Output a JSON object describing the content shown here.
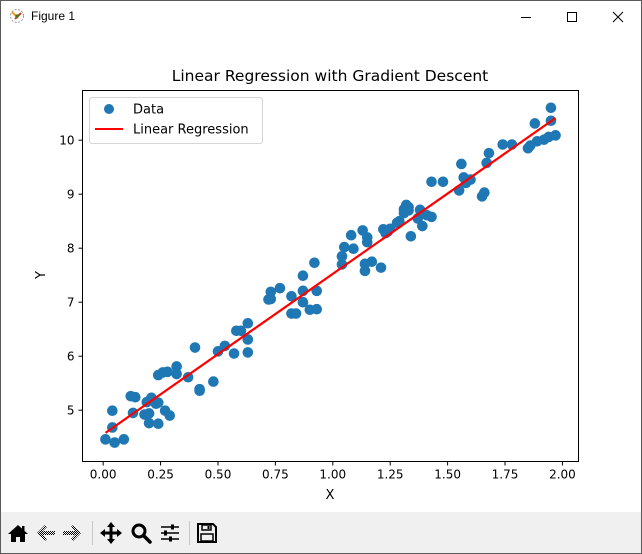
{
  "window": {
    "title": "Figure 1",
    "controls": [
      "minimize",
      "maximize",
      "close"
    ]
  },
  "toolbar": {
    "buttons": [
      {
        "name": "home",
        "icon": "home-icon"
      },
      {
        "name": "back",
        "icon": "arrow-left-icon"
      },
      {
        "name": "forward",
        "icon": "arrow-right-icon"
      },
      {
        "name": "pan",
        "icon": "move-icon"
      },
      {
        "name": "zoom",
        "icon": "magnifier-icon"
      },
      {
        "name": "configure-subplots",
        "icon": "sliders-icon"
      },
      {
        "name": "save",
        "icon": "floppy-disk-icon"
      }
    ]
  },
  "colors": {
    "scatter": "#1f77b4",
    "line": "#ff0000",
    "toolbar_bg": "#f0f0f0"
  },
  "chart_data": {
    "type": "scatter",
    "title": "Linear Regression with Gradient Descent",
    "xlabel": "X",
    "ylabel": "Y",
    "xlim": [
      -0.09,
      2.07
    ],
    "ylim": [
      4.05,
      10.92
    ],
    "xticks": [
      "0.00",
      "0.25",
      "0.50",
      "0.75",
      "1.00",
      "1.25",
      "1.50",
      "1.75",
      "2.00"
    ],
    "yticks": [
      "5",
      "6",
      "7",
      "8",
      "9",
      "10"
    ],
    "grid": false,
    "legend": {
      "position": "upper left",
      "entries": [
        {
          "label": "Data",
          "marker": "circle",
          "color": "#1f77b4"
        },
        {
          "label": "Linear Regression",
          "marker": "line",
          "color": "#ff0000"
        }
      ]
    },
    "series": [
      {
        "name": "Data",
        "type": "scatter",
        "points": [
          [
            0.01,
            4.46
          ],
          [
            0.04,
            4.68
          ],
          [
            0.04,
            4.99
          ],
          [
            0.05,
            4.4
          ],
          [
            0.09,
            4.46
          ],
          [
            0.12,
            5.26
          ],
          [
            0.13,
            4.95
          ],
          [
            0.14,
            5.24
          ],
          [
            0.18,
            4.92
          ],
          [
            0.19,
            5.15
          ],
          [
            0.2,
            4.76
          ],
          [
            0.2,
            4.94
          ],
          [
            0.21,
            5.23
          ],
          [
            0.23,
            5.12
          ],
          [
            0.24,
            4.75
          ],
          [
            0.24,
            5.14
          ],
          [
            0.24,
            5.65
          ],
          [
            0.26,
            5.7
          ],
          [
            0.27,
            4.99
          ],
          [
            0.28,
            5.71
          ],
          [
            0.29,
            4.9
          ],
          [
            0.32,
            5.67
          ],
          [
            0.32,
            5.81
          ],
          [
            0.37,
            5.61
          ],
          [
            0.4,
            6.16
          ],
          [
            0.42,
            5.39
          ],
          [
            0.42,
            5.36
          ],
          [
            0.48,
            5.53
          ],
          [
            0.5,
            6.09
          ],
          [
            0.53,
            6.19
          ],
          [
            0.57,
            6.05
          ],
          [
            0.58,
            6.47
          ],
          [
            0.6,
            6.47
          ],
          [
            0.63,
            6.07
          ],
          [
            0.63,
            6.31
          ],
          [
            0.63,
            6.61
          ],
          [
            0.72,
            7.05
          ],
          [
            0.73,
            7.06
          ],
          [
            0.73,
            7.19
          ],
          [
            0.77,
            7.26
          ],
          [
            0.82,
            6.79
          ],
          [
            0.82,
            7.11
          ],
          [
            0.84,
            6.79
          ],
          [
            0.87,
            7.0
          ],
          [
            0.87,
            7.21
          ],
          [
            0.87,
            7.49
          ],
          [
            0.9,
            6.86
          ],
          [
            0.92,
            7.73
          ],
          [
            0.93,
            7.21
          ],
          [
            0.93,
            6.87
          ],
          [
            1.04,
            7.7
          ],
          [
            1.04,
            7.85
          ],
          [
            1.05,
            8.02
          ],
          [
            1.08,
            8.24
          ],
          [
            1.09,
            7.99
          ],
          [
            1.13,
            8.33
          ],
          [
            1.14,
            7.58
          ],
          [
            1.14,
            7.71
          ],
          [
            1.15,
            8.11
          ],
          [
            1.15,
            8.2
          ],
          [
            1.17,
            7.75
          ],
          [
            1.21,
            7.64
          ],
          [
            1.22,
            8.35
          ],
          [
            1.23,
            8.28
          ],
          [
            1.24,
            8.31
          ],
          [
            1.25,
            8.36
          ],
          [
            1.28,
            8.47
          ],
          [
            1.29,
            8.5
          ],
          [
            1.31,
            8.72
          ],
          [
            1.31,
            8.65
          ],
          [
            1.32,
            8.8
          ],
          [
            1.33,
            8.7
          ],
          [
            1.33,
            8.76
          ],
          [
            1.34,
            8.22
          ],
          [
            1.37,
            8.55
          ],
          [
            1.38,
            8.71
          ],
          [
            1.39,
            8.41
          ],
          [
            1.41,
            8.61
          ],
          [
            1.43,
            9.23
          ],
          [
            1.43,
            8.58
          ],
          [
            1.48,
            9.23
          ],
          [
            1.55,
            9.07
          ],
          [
            1.56,
            9.56
          ],
          [
            1.57,
            9.31
          ],
          [
            1.58,
            9.21
          ],
          [
            1.6,
            9.27
          ],
          [
            1.65,
            8.96
          ],
          [
            1.66,
            9.03
          ],
          [
            1.67,
            9.58
          ],
          [
            1.68,
            9.76
          ],
          [
            1.74,
            9.92
          ],
          [
            1.78,
            9.92
          ],
          [
            1.85,
            9.85
          ],
          [
            1.86,
            9.9
          ],
          [
            1.88,
            10.31
          ],
          [
            1.89,
            9.98
          ],
          [
            1.92,
            10.01
          ],
          [
            1.94,
            10.06
          ],
          [
            1.95,
            10.36
          ],
          [
            1.95,
            10.6
          ],
          [
            1.97,
            10.09
          ]
        ]
      },
      {
        "name": "Linear Regression",
        "type": "line",
        "x": [
          0.01,
          1.97
        ],
        "y": [
          4.58,
          10.41
        ]
      }
    ]
  }
}
